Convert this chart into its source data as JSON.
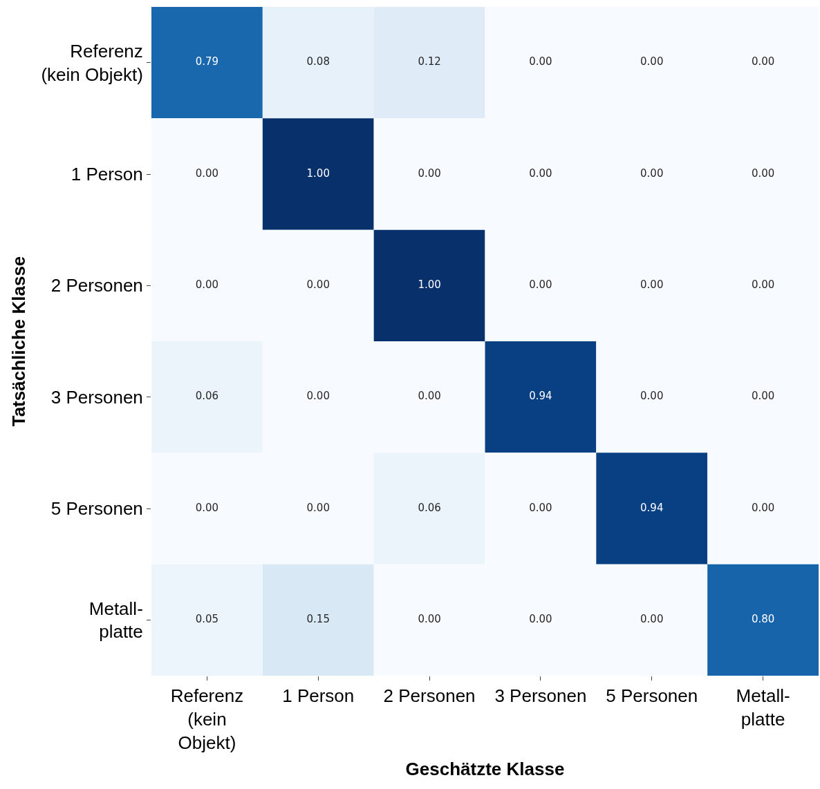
{
  "chart_data": {
    "type": "heatmap",
    "xlabel": "Geschätzte Klasse",
    "ylabel": "Tatsächliche Klasse",
    "categories": [
      "Referenz\n(kein\nObjekt)",
      "1 Person",
      "2 Personen",
      "3 Personen",
      "5 Personen",
      "Metall-\nplatte"
    ],
    "y_categories": [
      "Referenz\n(kein Objekt)",
      "1 Person",
      "2 Personen",
      "3 Personen",
      "5 Personen",
      "Metall-\nplatte"
    ],
    "cells": [
      [
        0.79,
        0.08,
        0.12,
        0.0,
        0.0,
        0.0
      ],
      [
        0.0,
        1.0,
        0.0,
        0.0,
        0.0,
        0.0
      ],
      [
        0.0,
        0.0,
        1.0,
        0.0,
        0.0,
        0.0
      ],
      [
        0.06,
        0.0,
        0.0,
        0.94,
        0.0,
        0.0
      ],
      [
        0.0,
        0.0,
        0.06,
        0.0,
        0.94,
        0.0
      ],
      [
        0.05,
        0.15,
        0.0,
        0.0,
        0.0,
        0.8
      ]
    ],
    "cell_labels": [
      [
        "0.79",
        "0.08",
        "0.12",
        "0.00",
        "0.00",
        "0.00"
      ],
      [
        "0.00",
        "1.00",
        "0.00",
        "0.00",
        "0.00",
        "0.00"
      ],
      [
        "0.00",
        "0.00",
        "1.00",
        "0.00",
        "0.00",
        "0.00"
      ],
      [
        "0.06",
        "0.00",
        "0.00",
        "0.94",
        "0.00",
        "0.00"
      ],
      [
        "0.00",
        "0.00",
        "0.06",
        "0.00",
        "0.94",
        "0.00"
      ],
      [
        "0.05",
        "0.15",
        "0.00",
        "0.00",
        "0.00",
        "0.80"
      ]
    ]
  }
}
